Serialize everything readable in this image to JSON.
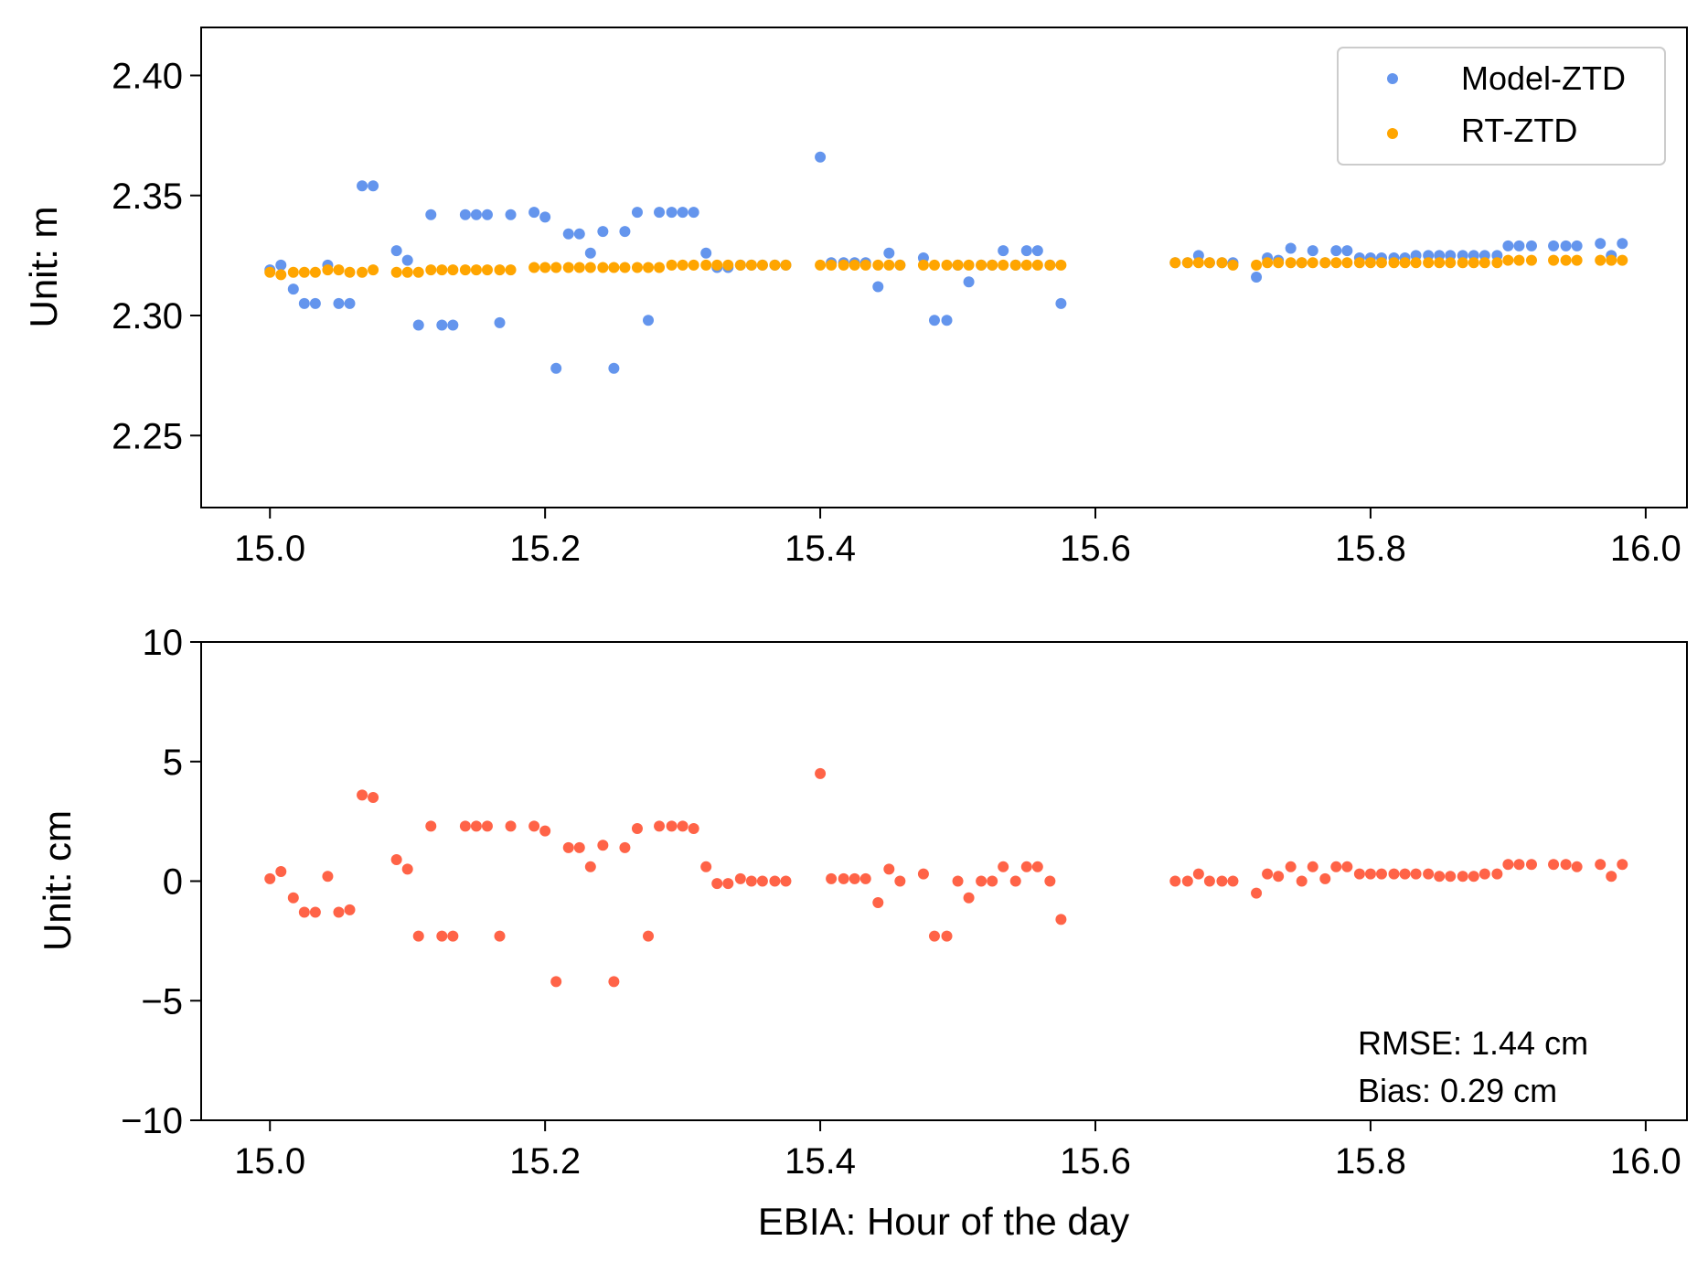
{
  "chart_data": [
    {
      "type": "scatter",
      "title": "",
      "xlabel": "",
      "ylabel": "Unit: m",
      "xlim": [
        14.95,
        16.03
      ],
      "ylim": [
        2.22,
        2.42
      ],
      "xticks": [
        15.0,
        15.2,
        15.4,
        15.6,
        15.8,
        16.0
      ],
      "xtick_labels": [
        "15.0",
        "15.2",
        "15.4",
        "15.6",
        "15.8",
        "16.0"
      ],
      "yticks": [
        2.25,
        2.3,
        2.35,
        2.4
      ],
      "ytick_labels": [
        "2.25",
        "2.30",
        "2.35",
        "2.40"
      ],
      "legend_position": "top-right",
      "grid": false,
      "series": [
        {
          "name": "Model-ZTD",
          "color": "#6495ED",
          "x": [
            15.0,
            15.008,
            15.017,
            15.025,
            15.033,
            15.042,
            15.05,
            15.058,
            15.067,
            15.075,
            15.092,
            15.1,
            15.108,
            15.117,
            15.125,
            15.133,
            15.142,
            15.15,
            15.158,
            15.167,
            15.175,
            15.192,
            15.2,
            15.208,
            15.217,
            15.225,
            15.233,
            15.242,
            15.25,
            15.258,
            15.267,
            15.275,
            15.283,
            15.292,
            15.3,
            15.308,
            15.317,
            15.325,
            15.333,
            15.342,
            15.35,
            15.358,
            15.367,
            15.375,
            15.4,
            15.408,
            15.417,
            15.425,
            15.433,
            15.442,
            15.45,
            15.458,
            15.475,
            15.483,
            15.492,
            15.5,
            15.508,
            15.517,
            15.525,
            15.533,
            15.542,
            15.55,
            15.558,
            15.567,
            15.575,
            15.658,
            15.667,
            15.675,
            15.683,
            15.692,
            15.7,
            15.717,
            15.725,
            15.733,
            15.742,
            15.75,
            15.758,
            15.767,
            15.775,
            15.783,
            15.792,
            15.8,
            15.808,
            15.817,
            15.825,
            15.833,
            15.842,
            15.85,
            15.858,
            15.867,
            15.875,
            15.883,
            15.892,
            15.9,
            15.908,
            15.917,
            15.933,
            15.942,
            15.95,
            15.967,
            15.975,
            15.983
          ],
          "y": [
            2.319,
            2.321,
            2.311,
            2.305,
            2.305,
            2.321,
            2.305,
            2.305,
            2.354,
            2.354,
            2.327,
            2.323,
            2.296,
            2.342,
            2.296,
            2.296,
            2.342,
            2.342,
            2.342,
            2.297,
            2.342,
            2.343,
            2.341,
            2.278,
            2.334,
            2.334,
            2.326,
            2.335,
            2.278,
            2.335,
            2.343,
            2.298,
            2.343,
            2.343,
            2.343,
            2.343,
            2.326,
            2.32,
            2.32,
            2.321,
            2.321,
            2.321,
            2.321,
            2.321,
            2.366,
            2.322,
            2.322,
            2.322,
            2.322,
            2.312,
            2.326,
            2.321,
            2.324,
            2.298,
            2.298,
            2.321,
            2.314,
            2.321,
            2.321,
            2.327,
            2.321,
            2.327,
            2.327,
            2.321,
            2.305,
            2.322,
            2.322,
            2.325,
            2.322,
            2.322,
            2.322,
            2.316,
            2.324,
            2.323,
            2.328,
            2.322,
            2.327,
            2.322,
            2.327,
            2.327,
            2.324,
            2.324,
            2.324,
            2.324,
            2.324,
            2.325,
            2.325,
            2.325,
            2.325,
            2.325,
            2.325,
            2.325,
            2.325,
            2.329,
            2.329,
            2.329,
            2.329,
            2.329,
            2.329,
            2.33,
            2.325,
            2.33
          ]
        },
        {
          "name": "RT-ZTD",
          "color": "#FFA500",
          "x": [
            15.0,
            15.008,
            15.017,
            15.025,
            15.033,
            15.042,
            15.05,
            15.058,
            15.067,
            15.075,
            15.092,
            15.1,
            15.108,
            15.117,
            15.125,
            15.133,
            15.142,
            15.15,
            15.158,
            15.167,
            15.175,
            15.192,
            15.2,
            15.208,
            15.217,
            15.225,
            15.233,
            15.242,
            15.25,
            15.258,
            15.267,
            15.275,
            15.283,
            15.292,
            15.3,
            15.308,
            15.317,
            15.325,
            15.333,
            15.342,
            15.35,
            15.358,
            15.367,
            15.375,
            15.4,
            15.408,
            15.417,
            15.425,
            15.433,
            15.442,
            15.45,
            15.458,
            15.475,
            15.483,
            15.492,
            15.5,
            15.508,
            15.517,
            15.525,
            15.533,
            15.542,
            15.55,
            15.558,
            15.567,
            15.575,
            15.658,
            15.667,
            15.675,
            15.683,
            15.692,
            15.7,
            15.717,
            15.725,
            15.733,
            15.742,
            15.75,
            15.758,
            15.767,
            15.775,
            15.783,
            15.792,
            15.8,
            15.808,
            15.817,
            15.825,
            15.833,
            15.842,
            15.85,
            15.858,
            15.867,
            15.875,
            15.883,
            15.892,
            15.9,
            15.908,
            15.917,
            15.933,
            15.942,
            15.95,
            15.967,
            15.975,
            15.983
          ],
          "y": [
            2.318,
            2.317,
            2.318,
            2.318,
            2.318,
            2.319,
            2.319,
            2.318,
            2.318,
            2.319,
            2.318,
            2.318,
            2.318,
            2.319,
            2.319,
            2.319,
            2.319,
            2.319,
            2.319,
            2.319,
            2.319,
            2.32,
            2.32,
            2.32,
            2.32,
            2.32,
            2.32,
            2.32,
            2.32,
            2.32,
            2.32,
            2.32,
            2.32,
            2.321,
            2.321,
            2.321,
            2.321,
            2.321,
            2.321,
            2.321,
            2.321,
            2.321,
            2.321,
            2.321,
            2.321,
            2.321,
            2.321,
            2.321,
            2.321,
            2.321,
            2.321,
            2.321,
            2.321,
            2.321,
            2.321,
            2.321,
            2.321,
            2.321,
            2.321,
            2.321,
            2.321,
            2.321,
            2.321,
            2.321,
            2.321,
            2.322,
            2.322,
            2.322,
            2.322,
            2.322,
            2.321,
            2.321,
            2.322,
            2.322,
            2.322,
            2.322,
            2.322,
            2.322,
            2.322,
            2.322,
            2.322,
            2.322,
            2.322,
            2.322,
            2.322,
            2.322,
            2.322,
            2.322,
            2.322,
            2.322,
            2.322,
            2.322,
            2.322,
            2.323,
            2.323,
            2.323,
            2.323,
            2.323,
            2.323,
            2.323,
            2.323,
            2.323
          ]
        }
      ]
    },
    {
      "type": "scatter",
      "title": "",
      "xlabel": "EBIA: Hour of the day",
      "ylabel": "Unit: cm",
      "xlim": [
        14.95,
        16.03
      ],
      "ylim": [
        -10,
        10
      ],
      "xticks": [
        15.0,
        15.2,
        15.4,
        15.6,
        15.8,
        16.0
      ],
      "xtick_labels": [
        "15.0",
        "15.2",
        "15.4",
        "15.6",
        "15.8",
        "16.0"
      ],
      "yticks": [
        -10,
        -5,
        0,
        5,
        10
      ],
      "ytick_labels": [
        "−10",
        "−5",
        "0",
        "5",
        "10"
      ],
      "grid": false,
      "annotations": [
        "RMSE: 1.44 cm",
        "Bias: 0.29 cm"
      ],
      "series": [
        {
          "color": "#FF6347",
          "x": [
            15.0,
            15.008,
            15.017,
            15.025,
            15.033,
            15.042,
            15.05,
            15.058,
            15.067,
            15.075,
            15.092,
            15.1,
            15.108,
            15.117,
            15.125,
            15.133,
            15.142,
            15.15,
            15.158,
            15.167,
            15.175,
            15.192,
            15.2,
            15.208,
            15.217,
            15.225,
            15.233,
            15.242,
            15.25,
            15.258,
            15.267,
            15.275,
            15.283,
            15.292,
            15.3,
            15.308,
            15.317,
            15.325,
            15.333,
            15.342,
            15.35,
            15.358,
            15.367,
            15.375,
            15.4,
            15.408,
            15.417,
            15.425,
            15.433,
            15.442,
            15.45,
            15.458,
            15.475,
            15.483,
            15.492,
            15.5,
            15.508,
            15.517,
            15.525,
            15.533,
            15.542,
            15.55,
            15.558,
            15.567,
            15.575,
            15.658,
            15.667,
            15.675,
            15.683,
            15.692,
            15.7,
            15.717,
            15.725,
            15.733,
            15.742,
            15.75,
            15.758,
            15.767,
            15.775,
            15.783,
            15.792,
            15.8,
            15.808,
            15.817,
            15.825,
            15.833,
            15.842,
            15.85,
            15.858,
            15.867,
            15.875,
            15.883,
            15.892,
            15.9,
            15.908,
            15.917,
            15.933,
            15.942,
            15.95,
            15.967,
            15.975,
            15.983
          ],
          "y": [
            0.1,
            0.4,
            -0.7,
            -1.3,
            -1.3,
            0.2,
            -1.3,
            -1.2,
            3.6,
            3.5,
            0.9,
            0.5,
            -2.3,
            2.3,
            -2.3,
            -2.3,
            2.3,
            2.3,
            2.3,
            -2.3,
            2.3,
            2.3,
            2.1,
            -4.2,
            1.4,
            1.4,
            0.6,
            1.5,
            -4.2,
            1.4,
            2.2,
            -2.3,
            2.3,
            2.3,
            2.3,
            2.2,
            0.6,
            -0.1,
            -0.1,
            0.1,
            0.0,
            0.0,
            0.0,
            0.0,
            4.5,
            0.1,
            0.1,
            0.1,
            0.1,
            -0.9,
            0.5,
            0.0,
            0.3,
            -2.3,
            -2.3,
            0.0,
            -0.7,
            0.0,
            0.0,
            0.6,
            0.0,
            0.6,
            0.6,
            0.0,
            -1.6,
            0.0,
            0.0,
            0.3,
            0.0,
            0.0,
            0.0,
            -0.5,
            0.3,
            0.2,
            0.6,
            0.0,
            0.6,
            0.1,
            0.6,
            0.6,
            0.3,
            0.3,
            0.3,
            0.3,
            0.3,
            0.3,
            0.3,
            0.2,
            0.2,
            0.2,
            0.2,
            0.3,
            0.3,
            0.7,
            0.7,
            0.7,
            0.7,
            0.7,
            0.6,
            0.7,
            0.2,
            0.7
          ]
        }
      ]
    }
  ]
}
